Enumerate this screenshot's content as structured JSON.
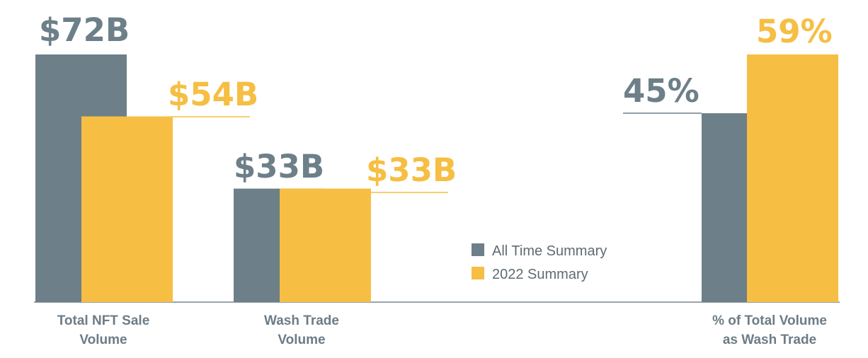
{
  "chart_data": {
    "type": "bar",
    "title": "",
    "xlabel": "",
    "ylabel": "",
    "groups": [
      {
        "category": [
          "Total NFT Sale",
          "Volume"
        ],
        "bars": [
          {
            "series": "All Time Summary",
            "value": 72,
            "label": "$72B"
          },
          {
            "series": "2022 Summary",
            "value": 54,
            "label": "$54B"
          }
        ]
      },
      {
        "category": [
          "Wash Trade",
          "Volume"
        ],
        "bars": [
          {
            "series": "All Time Summary",
            "value": 33,
            "label": "$33B"
          },
          {
            "series": "2022 Summary",
            "value": 33,
            "label": "$33B"
          }
        ]
      },
      {
        "category": [
          "% of Total Volume",
          "as Wash Trade"
        ],
        "bars": [
          {
            "series": "All Time Summary",
            "value": 45,
            "label": "45%"
          },
          {
            "series": "2022 Summary",
            "value": 59,
            "label": "59%"
          }
        ]
      }
    ],
    "legend": {
      "position": "center",
      "items": [
        {
          "name": "All Time Summary",
          "color": "#6d7f88"
        },
        {
          "name": "2022 Summary",
          "color": "#f6be43"
        }
      ]
    },
    "grid": false
  }
}
